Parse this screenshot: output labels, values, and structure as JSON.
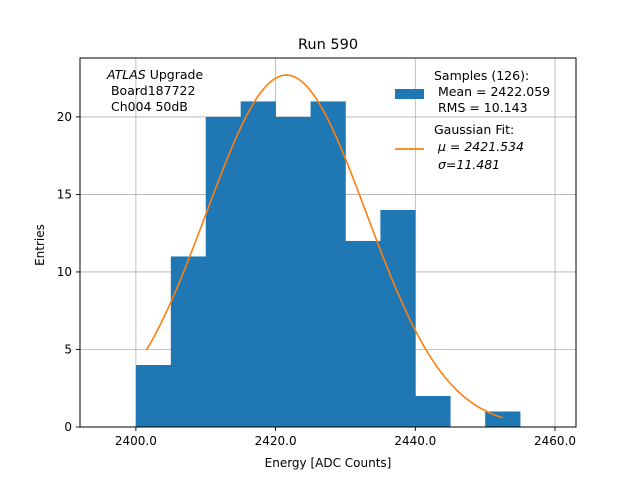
{
  "chart_data": {
    "type": "bar",
    "title": "Run 590",
    "xlabel": "Energy [ADC Counts]",
    "ylabel": "Entries",
    "xlim": [
      2392.0,
      2463.0
    ],
    "ylim": [
      0,
      23.8
    ],
    "grid": true,
    "x_ticks": [
      2400.0,
      2420.0,
      2440.0,
      2460.0
    ],
    "x_tick_labels": [
      "2400.0",
      "2420.0",
      "2440.0",
      "2460.0"
    ],
    "y_ticks": [
      0,
      5,
      10,
      15,
      20
    ],
    "y_tick_labels": [
      "0",
      "5",
      "10",
      "15",
      "20"
    ],
    "bin_edges": [
      2400.0,
      2405.0,
      2410.0,
      2415.0,
      2420.0,
      2425.0,
      2430.0,
      2435.0,
      2440.0,
      2445.0,
      2450.0,
      2455.0
    ],
    "counts": [
      4,
      11,
      20,
      21,
      20,
      21,
      12,
      14,
      2,
      0,
      1
    ],
    "bar_color": "#1f77b4",
    "fit": {
      "mu": 2421.534,
      "sigma": 11.481,
      "amplitude": 22.7,
      "x_start": 2401.5,
      "x_end": 2452.5,
      "color": "#ff7f0e"
    },
    "annotation": {
      "italic": "ATLAS",
      "line1_rest": " Upgrade",
      "line2": " Board187722",
      "line3": " Ch004 50dB"
    },
    "legend": {
      "placement": "top-right",
      "entries": [
        {
          "kind": "patch",
          "color": "#1f77b4",
          "lines": [
            "Samples (126):",
            " Mean = 2422.059",
            " RMS = 10.143"
          ]
        },
        {
          "kind": "line",
          "color": "#ff7f0e",
          "lines": [
            "Gaussian Fit:",
            " μ = 2421.534",
            " σ=11.481"
          ]
        }
      ]
    }
  }
}
